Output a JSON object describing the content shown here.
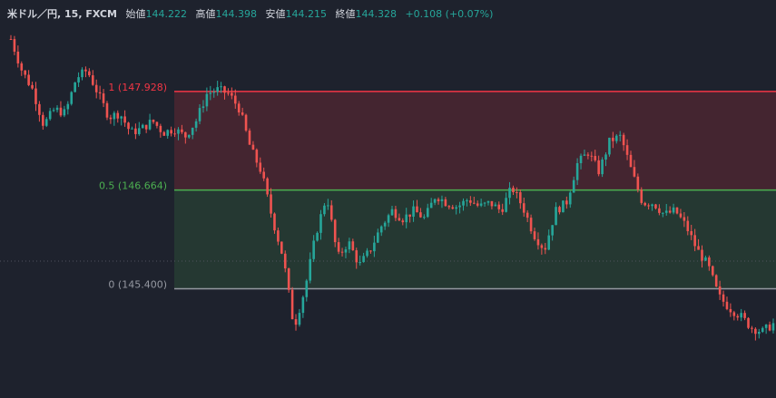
{
  "legend": {
    "symbol": "米ドル／円, 15, FXCM",
    "open_label": "始値",
    "open": "144.222",
    "high_label": "高値",
    "high": "144.398",
    "low_label": "安値",
    "low": "144.215",
    "close_label": "終値",
    "close": "144.328",
    "change": "+0.108 (+0.07%)"
  },
  "colors": {
    "background": "#1e222d",
    "up_candle": "#26a69a",
    "down_candle": "#ef5350",
    "fib_1": "#f23645",
    "fib_05": "#4caf50",
    "fib_0": "#9598a1",
    "legend_value": "#26a69a"
  },
  "chart_data": {
    "type": "candlestick",
    "price_range": [
      144.0,
      149.1
    ],
    "fib_levels": [
      {
        "ratio": "1",
        "price": 147.928,
        "label": "1 (147.928)"
      },
      {
        "ratio": "0.5",
        "price": 146.664,
        "label": "0.5 (146.664)"
      },
      {
        "ratio": "0",
        "price": 145.4,
        "label": "0 (145.400)"
      }
    ],
    "close_path": [
      148.6,
      148.2,
      147.95,
      147.5,
      147.7,
      147.65,
      148.1,
      148.2,
      147.9,
      147.6,
      147.65,
      147.4,
      147.45,
      147.55,
      147.4,
      147.45,
      147.35,
      147.55,
      147.9,
      147.95,
      147.9,
      147.7,
      147.2,
      146.9,
      146.3,
      145.8,
      144.9,
      145.4,
      146.1,
      146.6,
      145.8,
      146.0,
      145.7,
      145.9,
      146.2,
      146.4,
      146.3,
      146.4,
      146.3,
      146.6,
      146.5,
      146.45,
      146.55,
      146.45,
      146.5,
      146.4,
      146.7,
      146.45,
      146.1,
      145.9,
      146.4,
      146.5,
      147.0,
      147.15,
      146.9,
      147.3,
      147.35,
      146.9,
      146.5,
      146.5,
      146.35,
      146.4,
      146.2,
      145.9,
      145.7,
      145.3,
      145.15,
      145.05,
      144.9,
      144.85,
      144.95
    ],
    "candle_count": 215
  }
}
